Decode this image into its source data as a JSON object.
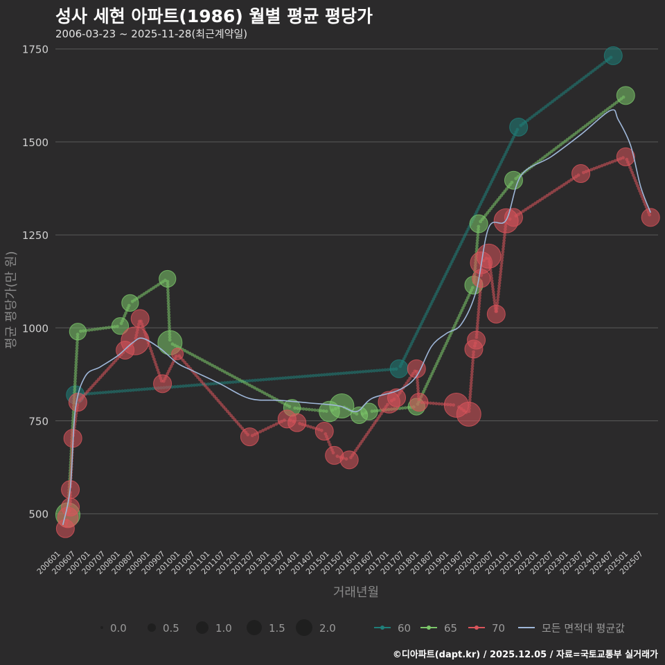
{
  "header": {
    "title": "성사 세현 아파트(1986) 월별 평균 평당가",
    "subtitle": "2006-03-23 ~ 2025-11-28(최근계약일)"
  },
  "footer": {
    "credit": "©디아파트(dapt.kr) / 2025.12.05 / 자료=국토교통부 실거래가"
  },
  "colors": {
    "s60": "#1f7f7a",
    "s65": "#7cc76a",
    "s70": "#d9545b",
    "avg": "#9fb7d9",
    "grid": "#5a5a5a",
    "bg": "#2b2a2b"
  },
  "chart_data": {
    "type": "line",
    "title": "성사 세현 아파트(1986) 월별 평균 평당가",
    "xlabel": "거래년월",
    "ylabel": "평균 평당가(만 원)",
    "ylim": [
      410,
      1770
    ],
    "yticks": [
      500,
      750,
      1000,
      1250,
      1500,
      1750
    ],
    "x_tick_labels": [
      "200601",
      "200607",
      "200701",
      "200707",
      "200801",
      "200807",
      "200901",
      "200907",
      "201001",
      "201007",
      "201101",
      "201107",
      "201201",
      "201207",
      "201301",
      "201307",
      "201401",
      "201407",
      "201501",
      "201507",
      "201601",
      "201607",
      "201701",
      "201707",
      "201801",
      "201807",
      "201901",
      "201907",
      "202001",
      "202007",
      "202101",
      "202107",
      "202201",
      "202207",
      "202301",
      "202307",
      "202401",
      "202407",
      "202501",
      "202507"
    ],
    "size_legend": {
      "values": [
        "0.0",
        "0.5",
        "1.0",
        "1.5",
        "2.0"
      ]
    },
    "legend": [
      "60",
      "65",
      "70",
      "모든 면적대 평균값"
    ],
    "series": [
      {
        "name": "60",
        "key": "s60",
        "points": [
          {
            "t": "2006-08",
            "v": 820,
            "s": 1.0
          },
          {
            "t": "2017-06",
            "v": 890,
            "s": 1.0
          },
          {
            "t": "2021-06",
            "v": 1540,
            "s": 1.0
          },
          {
            "t": "2024-08",
            "v": 1732,
            "s": 1.0
          }
        ]
      },
      {
        "name": "65",
        "key": "s65",
        "points": [
          {
            "t": "2006-05",
            "v": 497,
            "s": 1.5
          },
          {
            "t": "2006-09",
            "v": 990,
            "s": 0.9
          },
          {
            "t": "2008-02",
            "v": 1005,
            "s": 0.9
          },
          {
            "t": "2008-06",
            "v": 1067,
            "s": 0.9
          },
          {
            "t": "2009-09",
            "v": 1132,
            "s": 0.9
          },
          {
            "t": "2009-10",
            "v": 960,
            "s": 1.5
          },
          {
            "t": "2013-11",
            "v": 785,
            "s": 0.9
          },
          {
            "t": "2015-02",
            "v": 775,
            "s": 1.2
          },
          {
            "t": "2015-07",
            "v": 790,
            "s": 1.5
          },
          {
            "t": "2016-02",
            "v": 765,
            "s": 0.9
          },
          {
            "t": "2016-06",
            "v": 775,
            "s": 0.9
          },
          {
            "t": "2018-01",
            "v": 788,
            "s": 0.9
          },
          {
            "t": "2019-12",
            "v": 1115,
            "s": 1.0
          },
          {
            "t": "2020-02",
            "v": 1280,
            "s": 1.0
          },
          {
            "t": "2021-04",
            "v": 1397,
            "s": 1.0
          },
          {
            "t": "2025-01",
            "v": 1625,
            "s": 1.0
          }
        ]
      },
      {
        "name": "70",
        "key": "s70",
        "points": [
          {
            "t": "2006-04",
            "v": 460,
            "s": 1.0
          },
          {
            "t": "2006-05",
            "v": 490,
            "s": 1.2
          },
          {
            "t": "2006-06",
            "v": 518,
            "s": 1.0
          },
          {
            "t": "2006-06",
            "v": 565,
            "s": 1.0
          },
          {
            "t": "2006-07",
            "v": 703,
            "s": 1.0
          },
          {
            "t": "2006-09",
            "v": 800,
            "s": 1.0
          },
          {
            "t": "2008-04",
            "v": 940,
            "s": 1.0
          },
          {
            "t": "2008-08",
            "v": 965,
            "s": 1.8
          },
          {
            "t": "2008-10",
            "v": 1025,
            "s": 1.0
          },
          {
            "t": "2009-07",
            "v": 850,
            "s": 1.0
          },
          {
            "t": "2010-01",
            "v": 930,
            "s": 0.5
          },
          {
            "t": "2012-06",
            "v": 707,
            "s": 1.0
          },
          {
            "t": "2013-09",
            "v": 755,
            "s": 1.0
          },
          {
            "t": "2014-01",
            "v": 745,
            "s": 1.0
          },
          {
            "t": "2014-12",
            "v": 722,
            "s": 1.0
          },
          {
            "t": "2015-04",
            "v": 657,
            "s": 1.0
          },
          {
            "t": "2015-10",
            "v": 645,
            "s": 1.0
          },
          {
            "t": "2017-02",
            "v": 800,
            "s": 1.3
          },
          {
            "t": "2017-05",
            "v": 812,
            "s": 1.0
          },
          {
            "t": "2018-01",
            "v": 890,
            "s": 1.0
          },
          {
            "t": "2018-02",
            "v": 800,
            "s": 1.0
          },
          {
            "t": "2019-05",
            "v": 792,
            "s": 1.5
          },
          {
            "t": "2019-10",
            "v": 768,
            "s": 1.5
          },
          {
            "t": "2019-12",
            "v": 943,
            "s": 1.0
          },
          {
            "t": "2020-01",
            "v": 967,
            "s": 1.0
          },
          {
            "t": "2020-03",
            "v": 1133,
            "s": 1.0
          },
          {
            "t": "2020-03",
            "v": 1175,
            "s": 1.3
          },
          {
            "t": "2020-06",
            "v": 1193,
            "s": 1.5
          },
          {
            "t": "2020-09",
            "v": 1037,
            "s": 1.0
          },
          {
            "t": "2021-01",
            "v": 1288,
            "s": 1.5
          },
          {
            "t": "2021-04",
            "v": 1297,
            "s": 1.0
          },
          {
            "t": "2023-07",
            "v": 1415,
            "s": 1.0
          },
          {
            "t": "2025-01",
            "v": 1460,
            "s": 1.0
          },
          {
            "t": "2025-11",
            "v": 1297,
            "s": 1.0
          }
        ]
      },
      {
        "name": "모든 면적대 평균값",
        "key": "avg",
        "smooth": [
          {
            "t": "2006-03",
            "v": 470
          },
          {
            "t": "2006-06",
            "v": 570
          },
          {
            "t": "2006-08",
            "v": 780
          },
          {
            "t": "2006-12",
            "v": 870
          },
          {
            "t": "2007-06",
            "v": 895
          },
          {
            "t": "2008-01",
            "v": 925
          },
          {
            "t": "2008-07",
            "v": 960
          },
          {
            "t": "2008-11",
            "v": 972
          },
          {
            "t": "2009-06",
            "v": 945
          },
          {
            "t": "2010-01",
            "v": 905
          },
          {
            "t": "2010-07",
            "v": 885
          },
          {
            "t": "2011-06",
            "v": 850
          },
          {
            "t": "2012-06",
            "v": 810
          },
          {
            "t": "2013-06",
            "v": 805
          },
          {
            "t": "2014-06",
            "v": 798
          },
          {
            "t": "2015-06",
            "v": 790
          },
          {
            "t": "2016-01",
            "v": 775
          },
          {
            "t": "2016-07",
            "v": 810
          },
          {
            "t": "2017-06",
            "v": 833
          },
          {
            "t": "2018-01",
            "v": 870
          },
          {
            "t": "2018-07",
            "v": 950
          },
          {
            "t": "2019-01",
            "v": 985
          },
          {
            "t": "2019-07",
            "v": 1010
          },
          {
            "t": "2020-01",
            "v": 1100
          },
          {
            "t": "2020-06",
            "v": 1270
          },
          {
            "t": "2021-01",
            "v": 1290
          },
          {
            "t": "2021-07",
            "v": 1410
          },
          {
            "t": "2022-07",
            "v": 1460
          },
          {
            "t": "2023-07",
            "v": 1520
          },
          {
            "t": "2024-07",
            "v": 1585
          },
          {
            "t": "2024-10",
            "v": 1560
          },
          {
            "t": "2025-03",
            "v": 1490
          },
          {
            "t": "2025-07",
            "v": 1380
          },
          {
            "t": "2025-11",
            "v": 1310
          }
        ]
      }
    ]
  }
}
